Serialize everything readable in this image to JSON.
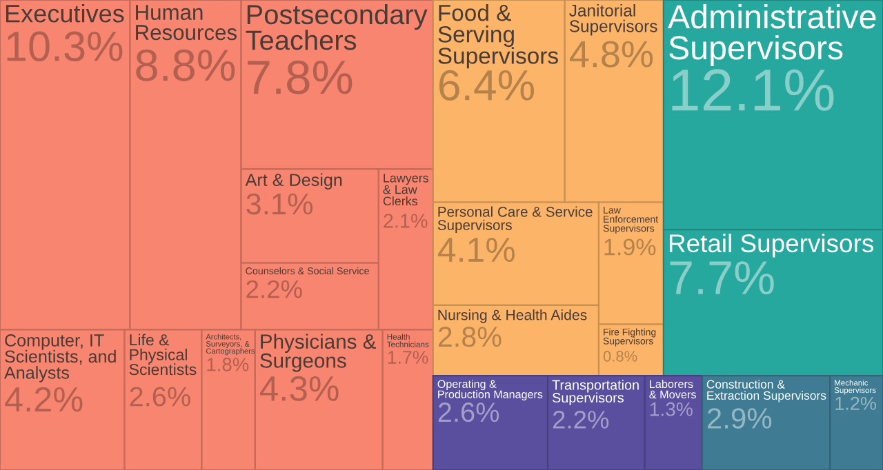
{
  "chart_data": {
    "type": "other",
    "categories": [
      "Executives",
      "Human\nResources",
      "Postsecondary\nTeachers",
      "Art & Design",
      "Counselors & Social Service",
      "Lawyers\n& Law\nClerks",
      "Computer, IT\nScientists, and\nAnalysts",
      "Life &\nPhysical\nScientists",
      "Architects,\nSurveyors, &\nCartographers",
      "Physicians &\nSurgeons",
      "Health\nTechnicians",
      "Food &\nServing\nSupervisors",
      "Janitorial\nSupervisors",
      "Personal Care & Service\nSupervisors",
      "Nursing & Health Aides",
      "Law\nEnforcement\nSupervisors",
      "Fire Fighting\nSupervisors",
      "Administrative\nSupervisors",
      "Retail Supervisors",
      "Operating &\nProduction Managers",
      "Transportation\nSupervisors",
      "Laborers\n& Movers",
      "Construction &\nExtraction Supervisors",
      "Mechanic\nSupervisors"
    ],
    "values": [
      10.3,
      8.8,
      7.8,
      3.1,
      2.2,
      2.1,
      4.2,
      2.6,
      1.8,
      4.3,
      1.7,
      6.4,
      4.8,
      4.1,
      2.8,
      1.9,
      0.8,
      12.1,
      7.7,
      2.6,
      2.2,
      1.3,
      2.9,
      1.2
    ],
    "value_labels": [
      "10.3%",
      "8.8%",
      "7.8%",
      "3.1%",
      "2.2%",
      "2.1%",
      "4.2%",
      "2.6%",
      "1.8%",
      "4.3%",
      "1.7%",
      "6.4%",
      "4.8%",
      "4.1%",
      "2.8%",
      "1.9%",
      "0.8%",
      "12.1%",
      "7.7%",
      "2.6%",
      "2.2%",
      "1.3%",
      "2.9%",
      "1.2%"
    ],
    "colors": [
      "#f8856f",
      "#f8856f",
      "#f8856f",
      "#f8856f",
      "#f8856f",
      "#f8856f",
      "#f8856f",
      "#f8856f",
      "#f8856f",
      "#f8856f",
      "#f8856f",
      "#fbb468",
      "#fbb468",
      "#fbb468",
      "#fbb468",
      "#fbb468",
      "#fbb468",
      "#27a89f",
      "#27a89f",
      "#5a4f9f",
      "#5a4f9f",
      "#5a4f9f",
      "#3f7c93",
      "#3f7c93"
    ]
  }
}
